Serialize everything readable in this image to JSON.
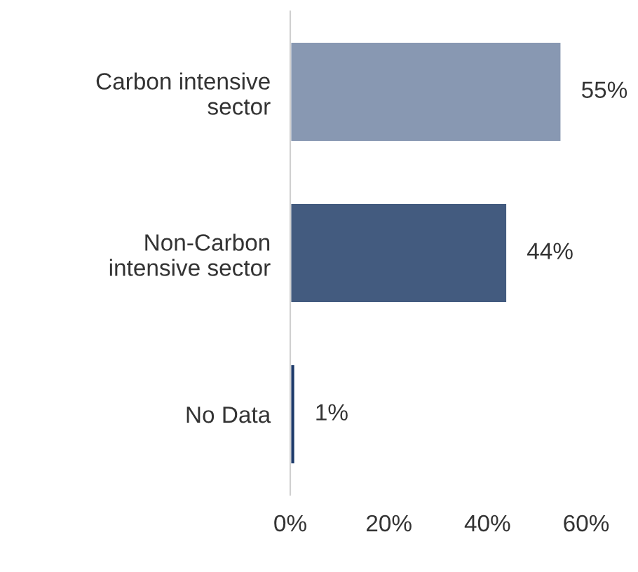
{
  "chart_data": {
    "type": "bar",
    "orientation": "horizontal",
    "categories": [
      "Carbon intensive\nsector",
      "Non-Carbon\nintensive sector",
      "No Data"
    ],
    "values": [
      55,
      44,
      1
    ],
    "colors": [
      "#8898b2",
      "#435b7f",
      "#1d3a6a"
    ],
    "value_labels": [
      "55%",
      "44%",
      "1%"
    ],
    "xlim": [
      0,
      60
    ],
    "xticks": [
      {
        "value": 0,
        "label": "0%"
      },
      {
        "value": 20,
        "label": "20%"
      },
      {
        "value": 40,
        "label": "40%"
      },
      {
        "value": 60,
        "label": "60%"
      }
    ],
    "grid": false,
    "legend": false
  }
}
